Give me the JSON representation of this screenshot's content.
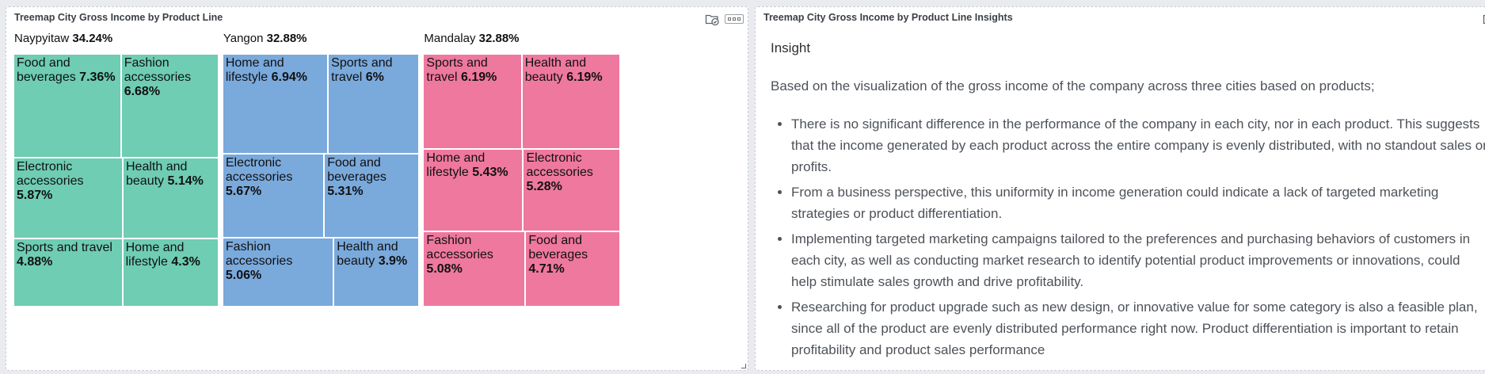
{
  "left_panel": {
    "title": "Treemap City Gross Income by Product Line",
    "icons": [
      "folder-check-icon",
      "more-dots-icon"
    ]
  },
  "right_panel": {
    "title": "Treemap City Gross Income by Product Line Insights",
    "icons": [
      "folder-check-icon"
    ],
    "heading": "Insight",
    "intro": "Based on the visualization of the gross income of the company across three cities based on products;",
    "bullets": [
      "There is no significant difference in the performance of the company in each city, nor in each product. This suggests that the income generated by each product across the entire company is evenly distributed, with no standout sales or profits.",
      "From a business perspective, this uniformity in income generation could indicate a lack of targeted marketing strategies or product differentiation.",
      "Implementing targeted marketing campaigns tailored to the preferences and purchasing behaviors of customers in each city, as well as conducting market research to identify potential product improvements or innovations, could help stimulate sales growth and drive profitability.",
      "Researching for product upgrade such as new design, or innovative value for some category is also a feasible plan, since all of the product are evenly distributed performance right now. Product differentiation is important to retain profitability and product sales performance"
    ]
  },
  "chart_data": {
    "type": "treemap",
    "title": "Treemap City Gross Income by Product Line",
    "unit": "%",
    "groups": [
      {
        "name": "Naypyitaw",
        "value": 34.24,
        "value_label": "34.24%",
        "color": "#6ecdb2",
        "items": [
          {
            "label": "Food and beverages",
            "value": 7.36,
            "value_label": "7.36%"
          },
          {
            "label": "Fashion accessories",
            "value": 6.68,
            "value_label": "6.68%"
          },
          {
            "label": "Electronic accessories",
            "value": 5.87,
            "value_label": "5.87%"
          },
          {
            "label": "Health and beauty",
            "value": 5.14,
            "value_label": "5.14%"
          },
          {
            "label": "Sports and travel",
            "value": 4.88,
            "value_label": "4.88%"
          },
          {
            "label": "Home and lifestyle",
            "value": 4.3,
            "value_label": "4.3%"
          }
        ]
      },
      {
        "name": "Yangon",
        "value": 32.88,
        "value_label": "32.88%",
        "color": "#7aa9dc",
        "items": [
          {
            "label": "Home and lifestyle",
            "value": 6.94,
            "value_label": "6.94%"
          },
          {
            "label": "Sports and travel",
            "value": 6,
            "value_label": "6%"
          },
          {
            "label": "Electronic accessories",
            "value": 5.67,
            "value_label": "5.67%"
          },
          {
            "label": "Food and beverages",
            "value": 5.31,
            "value_label": "5.31%"
          },
          {
            "label": "Fashion accessories",
            "value": 5.06,
            "value_label": "5.06%"
          },
          {
            "label": "Health and beauty",
            "value": 3.9,
            "value_label": "3.9%"
          }
        ]
      },
      {
        "name": "Mandalay",
        "value": 32.88,
        "value_label": "32.88%",
        "color": "#ef789e",
        "items": [
          {
            "label": "Sports and travel",
            "value": 6.19,
            "value_label": "6.19%"
          },
          {
            "label": "Health and beauty",
            "value": 6.19,
            "value_label": "6.19%"
          },
          {
            "label": "Home and lifestyle",
            "value": 5.43,
            "value_label": "5.43%"
          },
          {
            "label": "Electronic accessories",
            "value": 5.28,
            "value_label": "5.28%"
          },
          {
            "label": "Fashion accessories",
            "value": 5.08,
            "value_label": "5.08%"
          },
          {
            "label": "Food and beverages",
            "value": 4.71,
            "value_label": "4.71%"
          }
        ]
      }
    ]
  }
}
